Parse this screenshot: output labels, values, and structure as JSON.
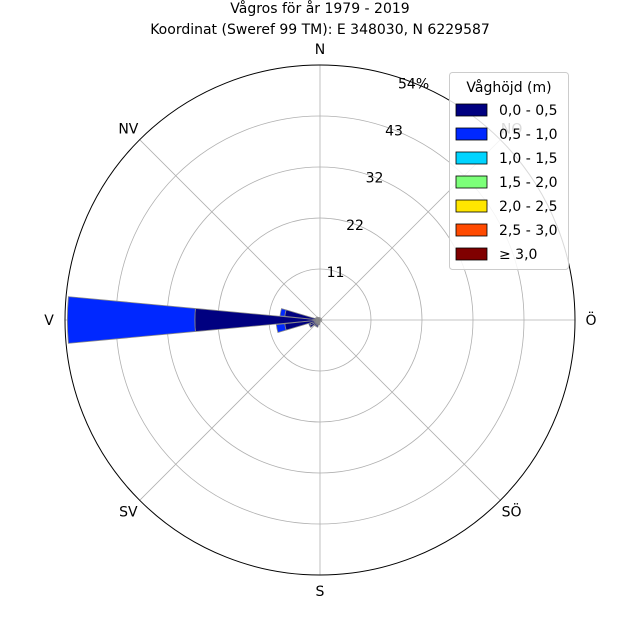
{
  "chart_data": {
    "type": "polar-stacked-bar",
    "title_line1": "Vågros för år 1979 - 2019",
    "title_line2": "Koordinat (Sweref 99 TM): E 348030, N 6229587",
    "directions": [
      "N",
      "NO",
      "Ö",
      "SÖ",
      "S",
      "SV",
      "V",
      "NV"
    ],
    "direction_angles": [
      0,
      45,
      90,
      135,
      180,
      225,
      270,
      315
    ],
    "radial_ticks": [
      "11",
      "22",
      "32",
      "43",
      "54%"
    ],
    "radial_tick_values": [
      10.8,
      21.6,
      32.4,
      43.2,
      54
    ],
    "rmax": 54,
    "grid": true,
    "legend_title": "Våghöjd (m)",
    "legend_placement": "top-right",
    "bins": [
      {
        "name": "0,0 - 0,5",
        "color": "#000080"
      },
      {
        "name": "0,5 - 1,0",
        "color": "#0028ff"
      },
      {
        "name": "1,0 - 1,5",
        "color": "#00d4ff"
      },
      {
        "name": "1,5 - 2,0",
        "color": "#7cff79"
      },
      {
        "name": "2,0 - 2,5",
        "color": "#ffe600"
      },
      {
        "name": "2,5 - 3,0",
        "color": "#ff4a00"
      },
      {
        "name": "≥ 3,0",
        "color": "#800000"
      }
    ],
    "sectors": [
      {
        "direction_deg": 270.0,
        "values": [
          26.5,
          27.0,
          0,
          0,
          0,
          0,
          0
        ]
      },
      {
        "direction_deg": 281.25,
        "values": [
          7.5,
          1.0,
          0,
          0,
          0,
          0,
          0
        ]
      },
      {
        "direction_deg": 258.75,
        "values": [
          7.5,
          1.8,
          0,
          0,
          0,
          0,
          0
        ]
      },
      {
        "direction_deg": 292.5,
        "values": [
          1.0,
          0,
          0,
          0,
          0,
          0,
          0
        ]
      },
      {
        "direction_deg": 247.5,
        "values": [
          2.2,
          0.3,
          0,
          0,
          0,
          0,
          0
        ]
      },
      {
        "direction_deg": 236.25,
        "values": [
          2.5,
          0,
          0,
          0,
          0,
          0,
          0
        ]
      },
      {
        "direction_deg": 225.0,
        "values": [
          1.6,
          0,
          0,
          0,
          0,
          0,
          0
        ]
      },
      {
        "direction_deg": 213.75,
        "values": [
          1.6,
          0,
          0,
          0,
          0,
          0,
          0
        ]
      },
      {
        "direction_deg": 202.5,
        "values": [
          1.6,
          0,
          0,
          0,
          0,
          0,
          0
        ]
      },
      {
        "direction_deg": 191.25,
        "values": [
          1.0,
          0,
          0,
          0,
          0,
          0,
          0
        ]
      },
      {
        "direction_deg": 180.0,
        "values": [
          0.6,
          0,
          0,
          0,
          0,
          0,
          0
        ]
      },
      {
        "direction_deg": 303.75,
        "values": [
          0.9,
          0,
          0,
          0,
          0,
          0,
          0
        ]
      },
      {
        "direction_deg": 315.0,
        "values": [
          0.8,
          0,
          0,
          0,
          0,
          0,
          0
        ]
      },
      {
        "direction_deg": 326.25,
        "values": [
          0.6,
          0,
          0,
          0,
          0,
          0,
          0
        ]
      },
      {
        "direction_deg": 337.5,
        "values": [
          0.5,
          0,
          0,
          0,
          0,
          0,
          0
        ]
      },
      {
        "direction_deg": 348.75,
        "values": [
          0.5,
          0,
          0,
          0,
          0,
          0,
          0
        ]
      },
      {
        "direction_deg": 0.0,
        "values": [
          0.5,
          0,
          0,
          0,
          0,
          0,
          0
        ]
      },
      {
        "direction_deg": 45.0,
        "values": [
          0.4,
          0,
          0,
          0,
          0,
          0,
          0
        ]
      },
      {
        "direction_deg": 90.0,
        "values": [
          0.4,
          0,
          0,
          0,
          0,
          0,
          0
        ]
      },
      {
        "direction_deg": 135.0,
        "values": [
          0.4,
          0,
          0,
          0,
          0,
          0,
          0
        ]
      }
    ]
  }
}
